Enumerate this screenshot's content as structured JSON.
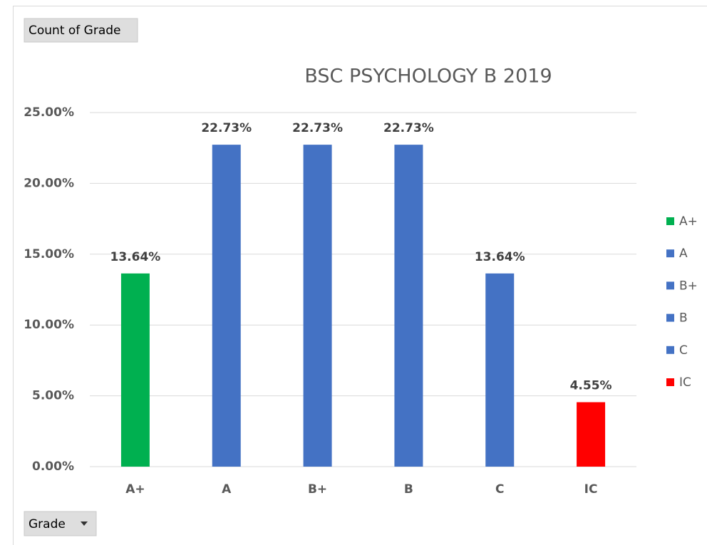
{
  "chart_data": {
    "type": "bar",
    "title": "BSC PSYCHOLOGY  B  2019",
    "value_field_button": "Count of Grade",
    "axis_field_button": "Grade",
    "categories": [
      "A+",
      "A",
      "B+",
      "B",
      "C",
      "IC"
    ],
    "values": [
      13.64,
      22.73,
      22.73,
      22.73,
      13.64,
      4.55
    ],
    "value_labels": [
      "13.64%",
      "22.73%",
      "22.73%",
      "22.73%",
      "13.64%",
      "4.55%"
    ],
    "colors": [
      "#00b050",
      "#4472c4",
      "#4472c4",
      "#4472c4",
      "#4472c4",
      "#ff0000"
    ],
    "ylim": [
      0,
      25
    ],
    "yticks": [
      {
        "value": 0,
        "label": "0.00%"
      },
      {
        "value": 5,
        "label": "5.00%"
      },
      {
        "value": 10,
        "label": "10.00%"
      },
      {
        "value": 15,
        "label": "15.00%"
      },
      {
        "value": 20,
        "label": "20.00%"
      },
      {
        "value": 25,
        "label": "25.00%"
      }
    ],
    "grid": true,
    "legend": "right"
  }
}
